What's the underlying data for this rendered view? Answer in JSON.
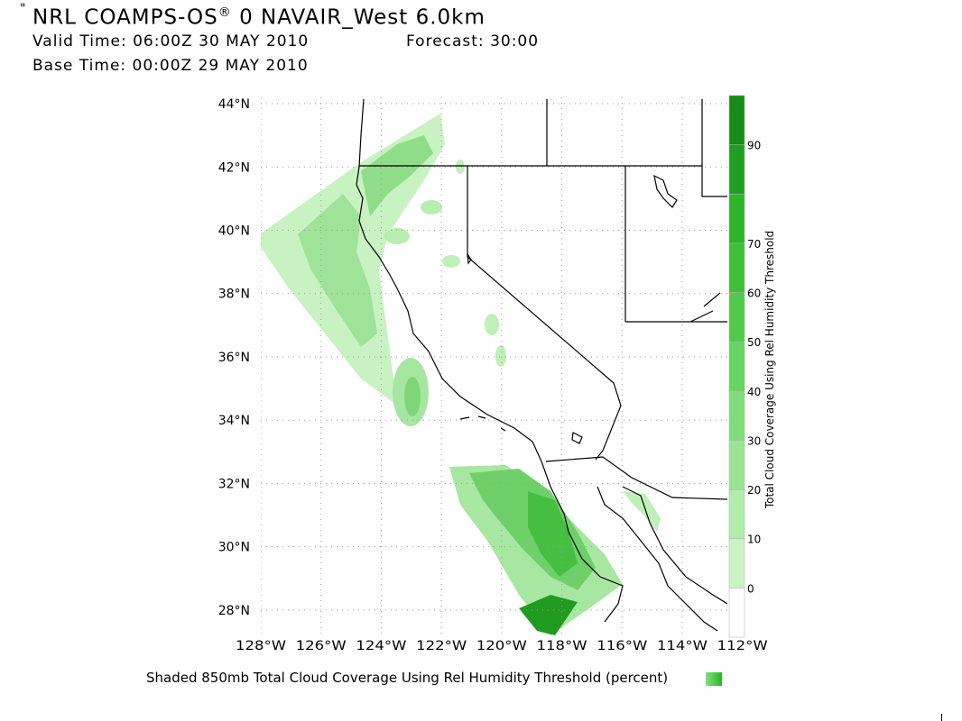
{
  "header": {
    "quote_mark": "\"",
    "title": "NRL COAMPS-OS",
    "title_mark": "®",
    "title_rest": " 0 NAVAIR_West 6.0km",
    "valid_time": "Valid Time: 06:00Z 30 MAY 2010",
    "forecast": "Forecast: 30:00",
    "base_time": "Base Time: 00:00Z 29 MAY 2010"
  },
  "map": {
    "lat_labels": [
      "44°N",
      "42°N",
      "40°N",
      "38°N",
      "36°N",
      "34°N",
      "32°N",
      "30°N",
      "28°N"
    ],
    "lon_labels": [
      "128°W",
      "126°W",
      "124°W",
      "122°W",
      "120°W",
      "118°W",
      "116°W",
      "114°W",
      "112°W"
    ],
    "lat_values": [
      44,
      42,
      40,
      38,
      36,
      34,
      32,
      30,
      28
    ],
    "lon_values": [
      -128,
      -126,
      -124,
      -122,
      -120,
      -118,
      -116,
      -114,
      -112
    ],
    "lat_range": [
      27.2,
      44.2
    ],
    "lon_range": [
      -128.0,
      -112.5
    ],
    "grid": true,
    "field": "850mb Total Cloud Coverage",
    "colors": {
      "land_lines": "#000000",
      "grid": "#9a9a9a",
      "light": "#c8f2c2",
      "mid": "#8fe08a",
      "strong": "#4fc84f",
      "deep": "#22a622"
    }
  },
  "colorbar": {
    "tick_labels": [
      "0",
      "10",
      "20",
      "30",
      "40",
      "50",
      "60",
      "70",
      "90"
    ],
    "tick_values": [
      0,
      10,
      20,
      30,
      40,
      50,
      60,
      70,
      90
    ],
    "range": [
      -10,
      100
    ],
    "title": "Total Cloud Coverage Using Rel Humidity Threshold",
    "colors": [
      "#ffffff",
      "#c9f3c3",
      "#b1ecab",
      "#98e592",
      "#80dd7a",
      "#68d462",
      "#50ca4b",
      "#3ec03a",
      "#2eb42b",
      "#1f9f1f",
      "#178c17"
    ]
  },
  "caption": "Shaded 850mb Total Cloud Coverage Using Rel Humidity Threshold (percent)"
}
